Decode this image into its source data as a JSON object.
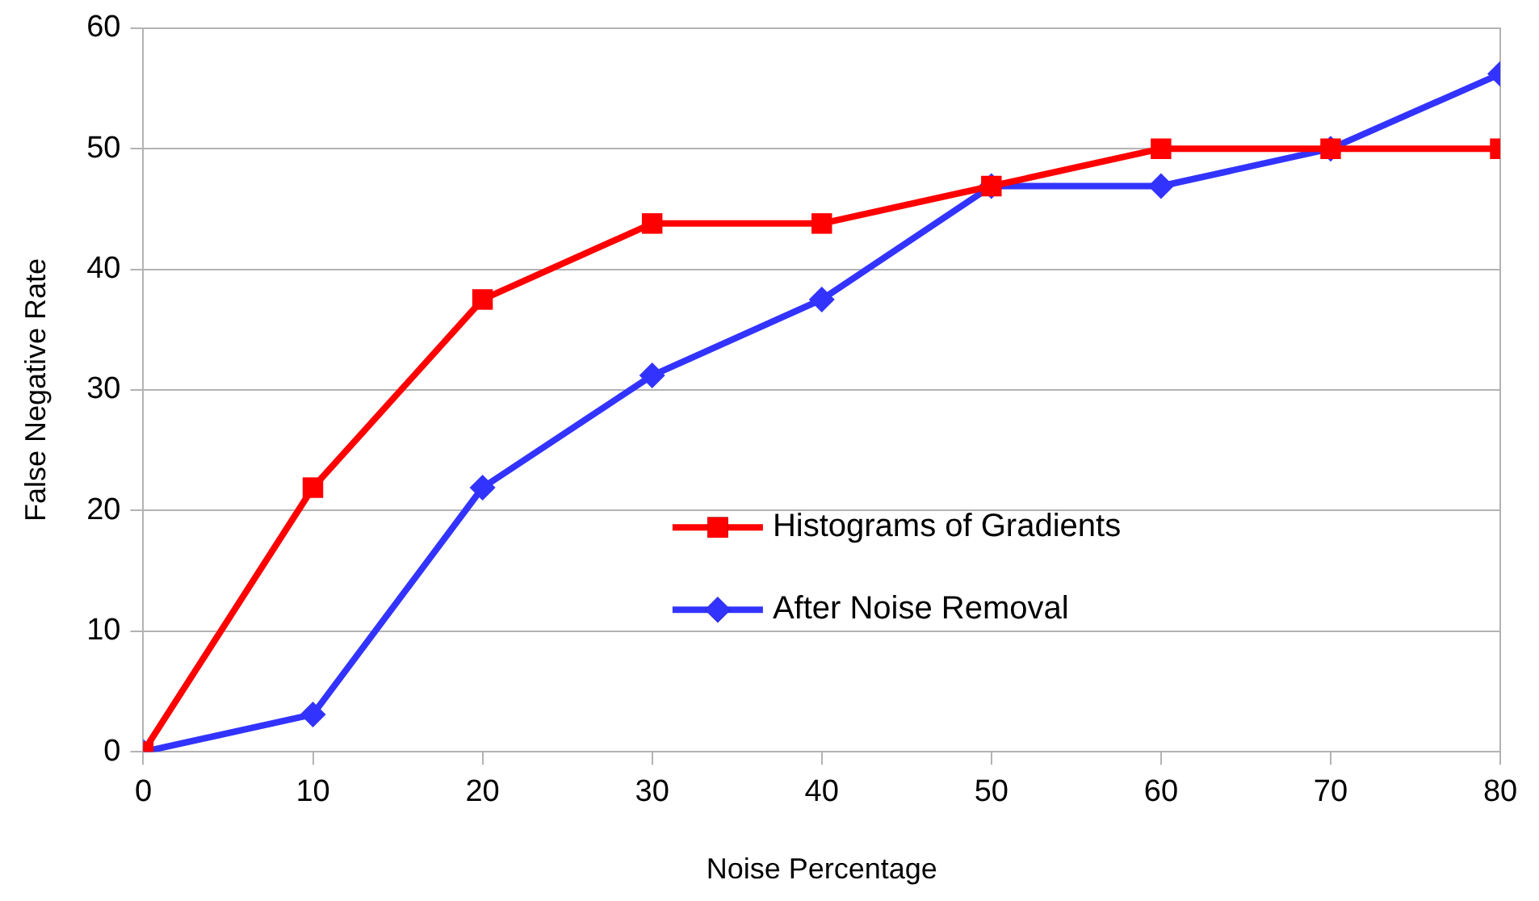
{
  "chart_data": {
    "type": "line",
    "xlabel": "Noise Percentage",
    "ylabel": "False Negative Rate",
    "x": [
      0,
      10,
      20,
      30,
      40,
      50,
      60,
      70,
      80
    ],
    "series": [
      {
        "name": "Histograms of Gradients",
        "color": "#ff0000",
        "marker": "square",
        "values": [
          0,
          21.9,
          37.5,
          43.8,
          43.8,
          46.9,
          50,
          50,
          50
        ]
      },
      {
        "name": "After Noise Removal",
        "color": "#3333ff",
        "marker": "diamond",
        "values": [
          0,
          3.1,
          21.9,
          31.2,
          37.5,
          46.9,
          46.9,
          50,
          56.2
        ]
      }
    ],
    "xlim": [
      0,
      80
    ],
    "xticks": [
      0,
      10,
      20,
      30,
      40,
      50,
      60,
      70,
      80
    ],
    "ylim": [
      0,
      60
    ],
    "yticks": [
      0,
      10,
      20,
      30,
      40,
      50,
      60
    ],
    "grid": "y",
    "legend": "bottom",
    "line_style": "solid"
  }
}
